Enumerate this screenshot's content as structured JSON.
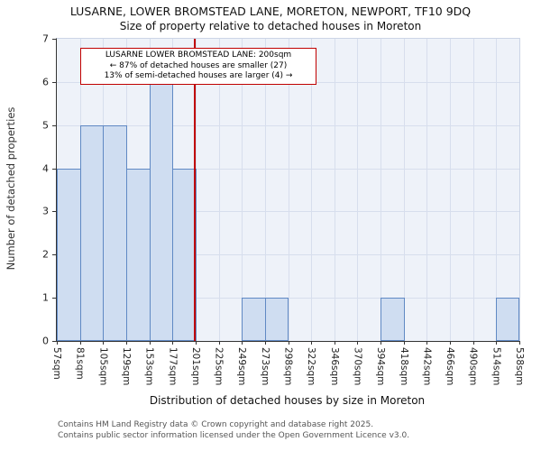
{
  "title": "LUSARNE, LOWER BROMSTEAD LANE, MORETON, NEWPORT, TF10 9DQ",
  "subtitle": "Size of property relative to detached houses in Moreton",
  "chart_data": {
    "type": "bar",
    "categories": [
      "57sqm",
      "81sqm",
      "105sqm",
      "129sqm",
      "153sqm",
      "177sqm",
      "201sqm",
      "225sqm",
      "249sqm",
      "273sqm",
      "298sqm",
      "322sqm",
      "346sqm",
      "370sqm",
      "394sqm",
      "418sqm",
      "442sqm",
      "466sqm",
      "490sqm",
      "514sqm",
      "538sqm"
    ],
    "values": [
      4,
      5,
      5,
      4,
      6,
      4,
      0,
      0,
      1,
      1,
      0,
      0,
      0,
      0,
      1,
      0,
      0,
      0,
      0,
      1
    ],
    "title": "LUSARNE, LOWER BROMSTEAD LANE, MORETON, NEWPORT, TF10 9DQ",
    "subtitle": "Size of property relative to detached houses in Moreton",
    "xlabel": "Distribution of detached houses by size in Moreton",
    "ylabel": "Number of detached properties",
    "ylim": [
      0,
      7
    ],
    "yticks": [
      0,
      1,
      2,
      3,
      4,
      5,
      6,
      7
    ],
    "grid": "on",
    "bar_fill": "#cfddf1",
    "bar_border": "#6089c4",
    "marker": {
      "value_sqm": 200,
      "axis_min": 57,
      "axis_max": 538,
      "color": "#c00000"
    },
    "annotation": {
      "lines": [
        "LUSARNE LOWER BROMSTEAD LANE: 200sqm",
        "← 87% of detached houses are smaller (27)",
        "13% of semi-detached houses are larger (4) →"
      ],
      "border_color": "#c00000"
    }
  },
  "footer": {
    "line1": "Contains HM Land Registry data © Crown copyright and database right 2025.",
    "line2": "Contains public sector information licensed under the Open Government Licence v3.0."
  }
}
